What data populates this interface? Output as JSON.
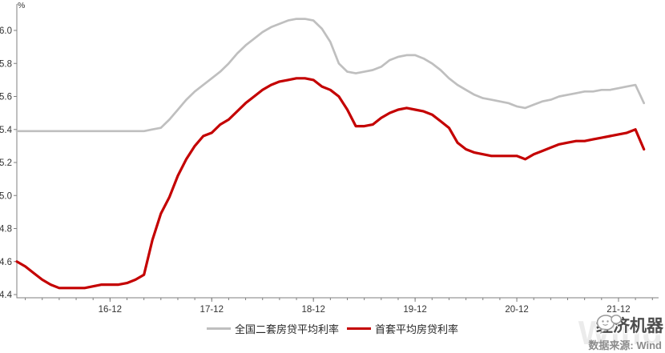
{
  "chart_data": {
    "type": "line",
    "title": "",
    "ylabel_unit": "%",
    "x_monthly_range": "2016-01 to 2022-03",
    "x_major_ticks": [
      "16-12",
      "17-12",
      "18-12",
      "19-12",
      "20-12",
      "21-12"
    ],
    "x_major_tick_month_index": [
      11,
      23,
      35,
      47,
      59,
      71
    ],
    "y_ticks": [
      "4.4",
      "4.6",
      "4.8",
      "5.0",
      "5.2",
      "5.4",
      "5.6",
      "5.8",
      "6.0"
    ],
    "ylim": [
      4.4,
      6.15
    ],
    "grid": false,
    "legend_position": "bottom-center",
    "series": [
      {
        "name": "全国二套房贷平均利率",
        "color": "#BFBFBF",
        "values": [
          5.39,
          5.39,
          5.39,
          5.39,
          5.39,
          5.39,
          5.39,
          5.39,
          5.39,
          5.39,
          5.39,
          5.39,
          5.39,
          5.39,
          5.39,
          5.39,
          5.4,
          5.41,
          5.46,
          5.52,
          5.58,
          5.63,
          5.67,
          5.71,
          5.75,
          5.8,
          5.86,
          5.91,
          5.95,
          5.99,
          6.02,
          6.04,
          6.06,
          6.07,
          6.07,
          6.06,
          6.01,
          5.93,
          5.8,
          5.75,
          5.74,
          5.75,
          5.76,
          5.78,
          5.82,
          5.84,
          5.85,
          5.85,
          5.83,
          5.8,
          5.76,
          5.71,
          5.67,
          5.64,
          5.61,
          5.59,
          5.58,
          5.57,
          5.56,
          5.54,
          5.53,
          5.55,
          5.57,
          5.58,
          5.6,
          5.61,
          5.62,
          5.63,
          5.63,
          5.64,
          5.64,
          5.65,
          5.66,
          5.67,
          5.56
        ]
      },
      {
        "name": "首套平均房贷利率",
        "color": "#C40000",
        "values": [
          4.6,
          4.57,
          4.53,
          4.49,
          4.46,
          4.44,
          4.44,
          4.44,
          4.44,
          4.45,
          4.46,
          4.46,
          4.46,
          4.47,
          4.49,
          4.52,
          4.73,
          4.89,
          4.99,
          5.12,
          5.22,
          5.3,
          5.36,
          5.38,
          5.43,
          5.46,
          5.51,
          5.56,
          5.6,
          5.64,
          5.67,
          5.69,
          5.7,
          5.71,
          5.71,
          5.7,
          5.66,
          5.64,
          5.6,
          5.52,
          5.42,
          5.42,
          5.43,
          5.47,
          5.5,
          5.52,
          5.53,
          5.52,
          5.51,
          5.49,
          5.45,
          5.41,
          5.32,
          5.28,
          5.26,
          5.25,
          5.24,
          5.24,
          5.24,
          5.24,
          5.22,
          5.25,
          5.27,
          5.29,
          5.31,
          5.32,
          5.33,
          5.33,
          5.34,
          5.35,
          5.36,
          5.37,
          5.38,
          5.4,
          5.28
        ]
      }
    ]
  },
  "footer": {
    "brand_name": "经济机器",
    "source_label": "数据来源: Wind",
    "watermark": "Wind"
  },
  "colors": {
    "axis": "#7f7f7f",
    "tick_text": "#333333",
    "series_second_home": "#BFBFBF",
    "series_first_home": "#C40000",
    "source_text": "#8c8c8c"
  }
}
